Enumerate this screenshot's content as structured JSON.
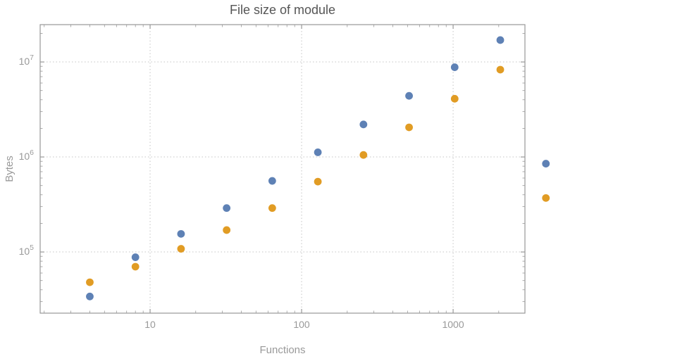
{
  "chart_data": {
    "type": "scatter",
    "title": "File size of module",
    "xlabel": "Functions",
    "ylabel": "Bytes",
    "x_scale": "log",
    "y_scale": "log",
    "grid": "dotted",
    "legend": "none",
    "x": [
      4,
      8,
      16,
      32,
      64,
      128,
      256,
      512,
      1024,
      2048,
      4096
    ],
    "series": [
      {
        "name": "blue",
        "color": "#5e81b5",
        "values": [
          34000,
          88000,
          155000,
          290000,
          560000,
          1120000,
          2200000,
          4400000,
          8800000,
          17000000,
          850000
        ]
      },
      {
        "name": "orange",
        "color": "#e19c24",
        "values": [
          48000,
          70000,
          108000,
          170000,
          290000,
          550000,
          1050000,
          2050000,
          4100000,
          8300000,
          370000
        ]
      }
    ],
    "x_ticks": [
      {
        "value": 10,
        "label": "10"
      },
      {
        "value": 100,
        "label": "100"
      },
      {
        "value": 1000,
        "label": "1000"
      }
    ],
    "y_ticks": [
      {
        "value": 100000,
        "base": "10",
        "exp": "5"
      },
      {
        "value": 1000000,
        "base": "10",
        "exp": "6"
      },
      {
        "value": 10000000,
        "base": "10",
        "exp": "7"
      }
    ],
    "x_range_log": [
      0.2744,
      3.474
    ],
    "y_range_log": [
      4.356,
      7.393
    ],
    "colors": {
      "axis": "#989898",
      "grid": "#c4c4c4",
      "tick_label": "#999999",
      "title": "#555555",
      "label": "#999999"
    }
  }
}
